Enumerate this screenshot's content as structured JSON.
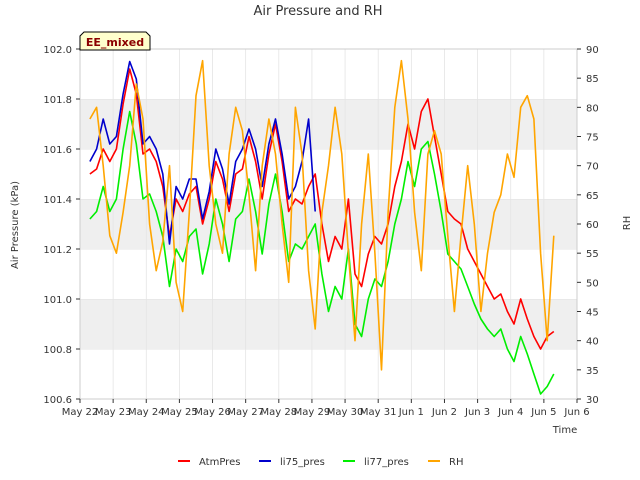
{
  "chart_data": {
    "type": "line",
    "title": "Air Pressure and RH",
    "badge": "EE_mixed",
    "xlabel": "Time",
    "ylabel_left": "Air Pressure (kPa)",
    "ylabel_right": "RH",
    "ylim_left": [
      100.6,
      102.0
    ],
    "ylim_right": [
      30,
      90
    ],
    "xlim": [
      0,
      15
    ],
    "x_tick_labels": [
      "May 22",
      "May 23",
      "May 24",
      "May 25",
      "May 26",
      "May 27",
      "May 28",
      "May 29",
      "May 30",
      "May 31",
      "Jun 1",
      "Jun 2",
      "Jun 3",
      "Jun 4",
      "Jun 5",
      "Jun 6"
    ],
    "y_ticks_left": [
      "100.6",
      "100.8",
      "101.0",
      "101.2",
      "101.4",
      "101.6",
      "101.8",
      "102.0"
    ],
    "y_ticks_right": [
      "30",
      "35",
      "40",
      "45",
      "50",
      "55",
      "60",
      "65",
      "70",
      "75",
      "80",
      "85",
      "90"
    ],
    "grid": "alternating horizontal bands",
    "legend_position": "bottom",
    "series": [
      {
        "name": "AtmPres",
        "color": "#ff0000",
        "axis": "left",
        "x": [
          0.3,
          0.5,
          0.7,
          0.9,
          1.1,
          1.3,
          1.5,
          1.7,
          1.9,
          2.1,
          2.3,
          2.5,
          2.7,
          2.9,
          3.1,
          3.3,
          3.5,
          3.7,
          3.9,
          4.1,
          4.3,
          4.5,
          4.7,
          4.9,
          5.1,
          5.3,
          5.5,
          5.7,
          5.9,
          6.1,
          6.3,
          6.5,
          6.7,
          6.9,
          7.1,
          7.3,
          7.5,
          7.7,
          7.9,
          8.1,
          8.3,
          8.5,
          8.7,
          8.9,
          9.1,
          9.3,
          9.5,
          9.7,
          9.9,
          10.1,
          10.3,
          10.5,
          10.7,
          10.9,
          11.1,
          11.3,
          11.5,
          11.7,
          11.9,
          12.1,
          12.3,
          12.5,
          12.7,
          12.9,
          13.1,
          13.3,
          13.5,
          13.7,
          13.9,
          14.1,
          14.3
        ],
        "y": [
          101.5,
          101.52,
          101.6,
          101.55,
          101.6,
          101.78,
          101.92,
          101.82,
          101.58,
          101.6,
          101.55,
          101.45,
          101.25,
          101.4,
          101.35,
          101.42,
          101.45,
          101.3,
          101.4,
          101.55,
          101.48,
          101.35,
          101.5,
          101.52,
          101.65,
          101.55,
          101.4,
          101.58,
          101.7,
          101.55,
          101.35,
          101.4,
          101.38,
          101.45,
          101.5,
          101.3,
          101.15,
          101.25,
          101.2,
          101.4,
          101.1,
          101.05,
          101.18,
          101.25,
          101.22,
          101.3,
          101.45,
          101.55,
          101.7,
          101.6,
          101.75,
          101.8,
          101.65,
          101.5,
          101.35,
          101.32,
          101.3,
          101.2,
          101.15,
          101.1,
          101.05,
          101.0,
          101.02,
          100.95,
          100.9,
          101.0,
          100.92,
          100.85,
          100.8,
          100.85,
          100.87
        ]
      },
      {
        "name": "li75_pres",
        "color": "#0000cc",
        "axis": "left",
        "x": [
          0.3,
          0.5,
          0.7,
          0.9,
          1.1,
          1.3,
          1.5,
          1.7,
          1.9,
          2.1,
          2.3,
          2.5,
          2.7,
          2.9,
          3.1,
          3.3,
          3.5,
          3.7,
          3.9,
          4.1,
          4.3,
          4.5,
          4.7,
          4.9,
          5.1,
          5.3,
          5.5,
          5.7,
          5.9,
          6.1,
          6.3,
          6.5,
          6.7,
          6.9,
          7.1
        ],
        "y": [
          101.55,
          101.6,
          101.72,
          101.62,
          101.65,
          101.82,
          101.95,
          101.88,
          101.62,
          101.65,
          101.6,
          101.5,
          101.22,
          101.45,
          101.4,
          101.48,
          101.48,
          101.32,
          101.43,
          101.6,
          101.52,
          101.38,
          101.55,
          101.6,
          101.68,
          101.6,
          101.45,
          101.62,
          101.72,
          101.58,
          101.4,
          101.45,
          101.55,
          101.72,
          101.35
        ]
      },
      {
        "name": "li77_pres",
        "color": "#00ee00",
        "axis": "left",
        "x": [
          0.3,
          0.5,
          0.7,
          0.9,
          1.1,
          1.3,
          1.5,
          1.7,
          1.9,
          2.1,
          2.3,
          2.5,
          2.7,
          2.9,
          3.1,
          3.3,
          3.5,
          3.7,
          3.9,
          4.1,
          4.3,
          4.5,
          4.7,
          4.9,
          5.1,
          5.3,
          5.5,
          5.7,
          5.9,
          6.1,
          6.3,
          6.5,
          6.7,
          6.9,
          7.1,
          7.3,
          7.5,
          7.7,
          7.9,
          8.1,
          8.3,
          8.5,
          8.7,
          8.9,
          9.1,
          9.3,
          9.5,
          9.7,
          9.9,
          10.1,
          10.3,
          10.5,
          10.7,
          10.9,
          11.1,
          11.3,
          11.5,
          11.7,
          11.9,
          12.1,
          12.3,
          12.5,
          12.7,
          12.9,
          13.1,
          13.3,
          13.5,
          13.7,
          13.9,
          14.1,
          14.3
        ],
        "y": [
          101.32,
          101.35,
          101.45,
          101.35,
          101.4,
          101.6,
          101.75,
          101.62,
          101.4,
          101.42,
          101.35,
          101.25,
          101.05,
          101.2,
          101.15,
          101.25,
          101.28,
          101.1,
          101.22,
          101.4,
          101.3,
          101.15,
          101.32,
          101.35,
          101.48,
          101.35,
          101.18,
          101.38,
          101.5,
          101.35,
          101.15,
          101.22,
          101.2,
          101.25,
          101.3,
          101.1,
          100.95,
          101.05,
          101.0,
          101.2,
          100.9,
          100.85,
          101.0,
          101.08,
          101.05,
          101.15,
          101.3,
          101.4,
          101.55,
          101.45,
          101.6,
          101.63,
          101.5,
          101.35,
          101.18,
          101.15,
          101.12,
          101.05,
          100.98,
          100.92,
          100.88,
          100.85,
          100.88,
          100.8,
          100.75,
          100.85,
          100.78,
          100.7,
          100.62,
          100.65,
          100.7
        ]
      },
      {
        "name": "RH",
        "color": "#ffa500",
        "axis": "right",
        "x": [
          0.3,
          0.5,
          0.7,
          0.9,
          1.1,
          1.3,
          1.5,
          1.7,
          1.9,
          2.1,
          2.3,
          2.5,
          2.7,
          2.9,
          3.1,
          3.3,
          3.5,
          3.7,
          3.9,
          4.1,
          4.3,
          4.5,
          4.7,
          4.9,
          5.1,
          5.3,
          5.5,
          5.7,
          5.9,
          6.1,
          6.3,
          6.5,
          6.7,
          6.9,
          7.1,
          7.3,
          7.5,
          7.7,
          7.9,
          8.1,
          8.3,
          8.5,
          8.7,
          8.9,
          9.1,
          9.3,
          9.5,
          9.7,
          9.9,
          10.1,
          10.3,
          10.5,
          10.7,
          10.9,
          11.1,
          11.3,
          11.5,
          11.7,
          11.9,
          12.1,
          12.3,
          12.5,
          12.7,
          12.9,
          13.1,
          13.3,
          13.5,
          13.7,
          13.9,
          14.1,
          14.3
        ],
        "y": [
          78,
          80,
          70,
          58,
          55,
          62,
          70,
          84,
          78,
          60,
          52,
          57,
          70,
          50,
          45,
          62,
          82,
          88,
          70,
          60,
          55,
          72,
          80,
          76,
          65,
          52,
          70,
          78,
          72,
          60,
          50,
          80,
          72,
          52,
          42,
          62,
          70,
          80,
          72,
          55,
          40,
          60,
          72,
          55,
          35,
          62,
          80,
          88,
          78,
          62,
          52,
          72,
          76,
          72,
          58,
          45,
          58,
          70,
          60,
          45,
          55,
          62,
          65,
          72,
          68,
          80,
          82,
          78,
          55,
          40,
          58
        ]
      }
    ]
  }
}
